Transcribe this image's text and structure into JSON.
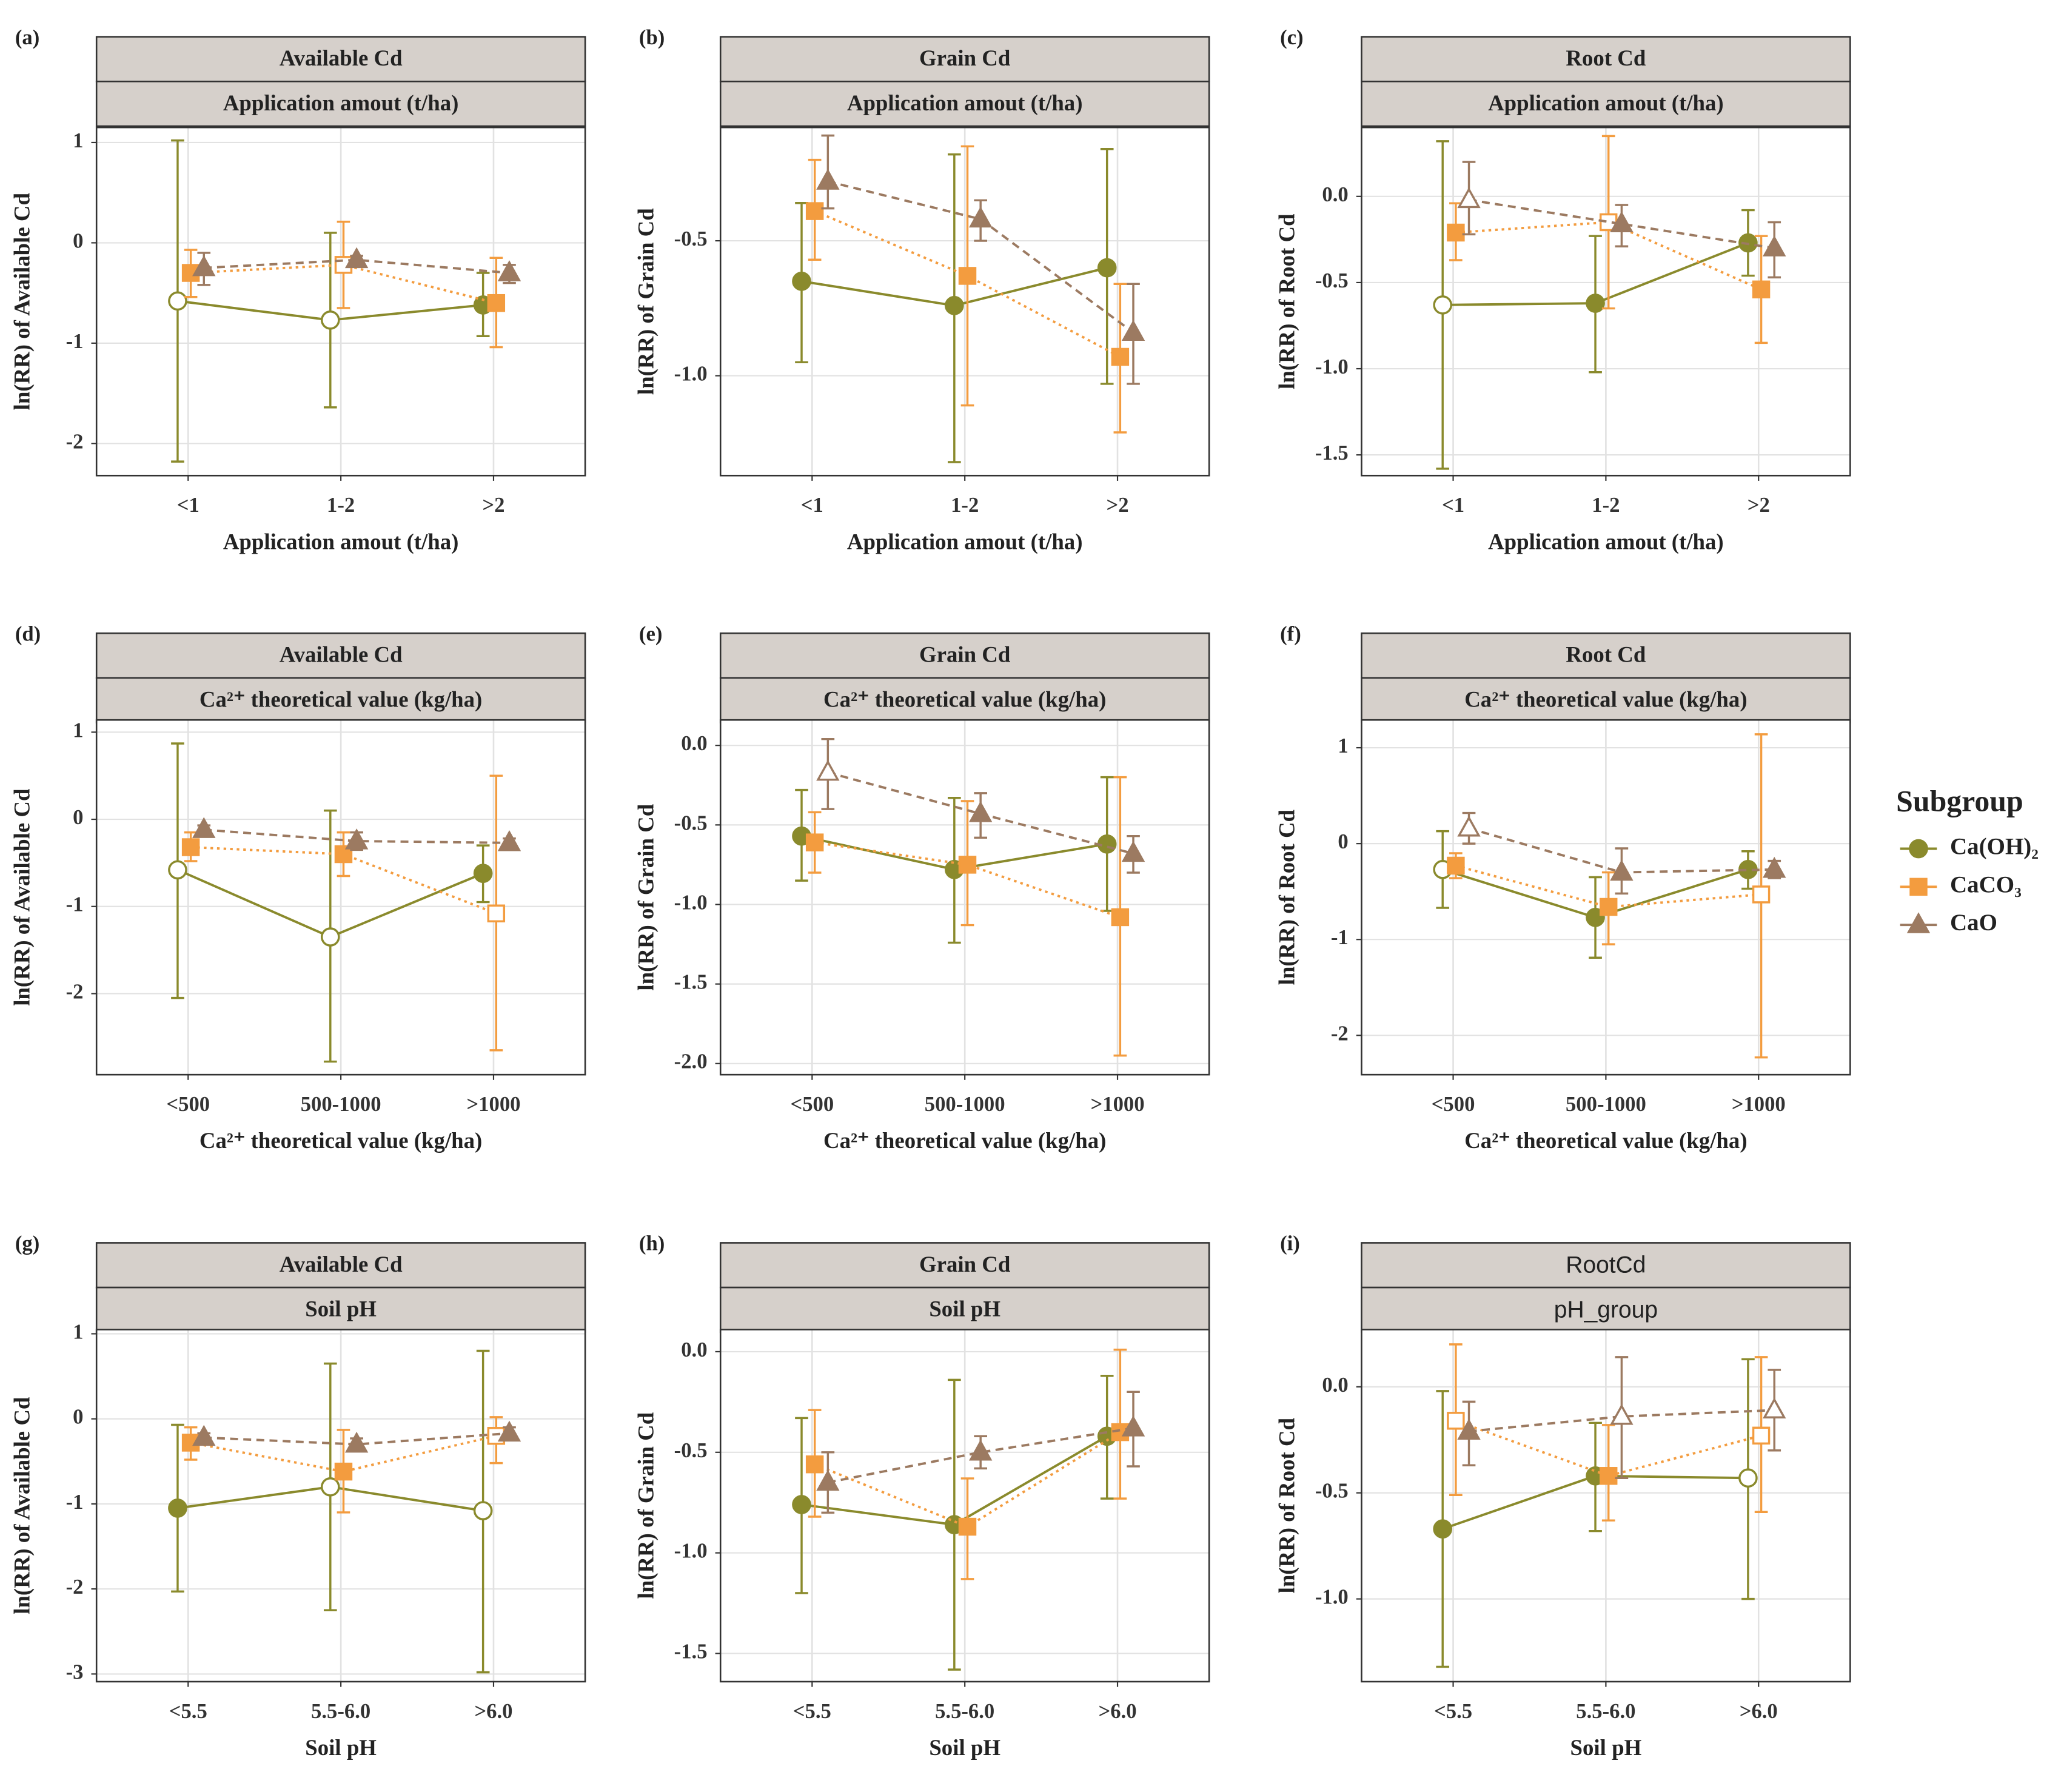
{
  "legend": {
    "title": "Subgroup"
  },
  "chart_data": [
    {
      "type": "line",
      "panel_label": "(a)",
      "strips": [
        "Available Cd",
        "Application amout (t/ha)"
      ],
      "x_label": "Application amout (t/ha)",
      "y_label": "ln(RR) of Available Cd",
      "categories": [
        "<1",
        "1-2",
        ">2"
      ],
      "ylim": [
        -2.32,
        1.15
      ],
      "yticks": [
        -2,
        -1,
        0,
        1
      ],
      "grid": true,
      "series": [
        {
          "name": "Ca(OH)₂",
          "color": "#8a8a2c",
          "marker": "circle",
          "dash": "solid",
          "values": [
            -0.58,
            -0.77,
            -0.62
          ],
          "ci_low": [
            -2.18,
            -1.64,
            -0.93
          ],
          "ci_high": [
            1.02,
            0.1,
            -0.3
          ],
          "filled": [
            false,
            false,
            true
          ]
        },
        {
          "name": "CaCO₃",
          "color": "#f39c3f",
          "marker": "square",
          "dash": "dotted",
          "values": [
            -0.3,
            -0.22,
            -0.6
          ],
          "ci_low": [
            -0.54,
            -0.65,
            -1.04
          ],
          "ci_high": [
            -0.07,
            0.21,
            -0.15
          ],
          "filled": [
            true,
            false,
            true
          ]
        },
        {
          "name": "CaO",
          "color": "#9c7a61",
          "marker": "triangle",
          "dash": "dashed",
          "values": [
            -0.25,
            -0.17,
            -0.3
          ],
          "ci_low": [
            -0.42,
            -0.22,
            -0.4
          ],
          "ci_high": [
            -0.1,
            -0.13,
            -0.22
          ],
          "filled": [
            true,
            true,
            true
          ]
        }
      ]
    },
    {
      "type": "line",
      "panel_label": "(b)",
      "strips": [
        "Grain Cd",
        "Application amout (t/ha)"
      ],
      "x_label": "Application amout (t/ha)",
      "y_label": "ln(RR) of Grain Cd",
      "categories": [
        "<1",
        "1-2",
        ">2"
      ],
      "ylim": [
        -1.37,
        -0.08
      ],
      "yticks": [
        {
          "value": -1,
          "label": "-1.0"
        },
        -0.5
      ],
      "grid": true,
      "series": [
        {
          "name": "Ca(OH)₂",
          "color": "#8a8a2c",
          "marker": "circle",
          "dash": "solid",
          "values": [
            -0.65,
            -0.74,
            -0.6
          ],
          "ci_low": [
            -0.95,
            -1.32,
            -1.03
          ],
          "ci_high": [
            -0.36,
            -0.18,
            -0.16
          ],
          "filled": [
            true,
            true,
            true
          ]
        },
        {
          "name": "CaCO₃",
          "color": "#f39c3f",
          "marker": "square",
          "dash": "dotted",
          "values": [
            -0.39,
            -0.63,
            -0.93
          ],
          "ci_low": [
            -0.57,
            -1.11,
            -1.21
          ],
          "ci_high": [
            -0.2,
            -0.15,
            -0.66
          ],
          "filled": [
            true,
            true,
            true
          ]
        },
        {
          "name": "CaO",
          "color": "#9c7a61",
          "marker": "triangle",
          "dash": "dashed",
          "values": [
            -0.28,
            -0.42,
            -0.84
          ],
          "ci_low": [
            -0.38,
            -0.5,
            -1.03
          ],
          "ci_high": [
            -0.11,
            -0.35,
            -0.66
          ],
          "filled": [
            true,
            true,
            true
          ]
        }
      ]
    },
    {
      "type": "line",
      "panel_label": "(c)",
      "strips": [
        "Root Cd",
        "Application amout (t/ha)"
      ],
      "x_label": "Application amout (t/ha)",
      "y_label": "ln(RR) of Root Cd",
      "categories": [
        "<1",
        "1-2",
        ">2"
      ],
      "ylim": [
        -1.62,
        0.4
      ],
      "yticks": [
        -1.5,
        {
          "value": -1,
          "label": "-1.0"
        },
        -0.5,
        {
          "value": 0,
          "label": "0.0"
        }
      ],
      "grid": true,
      "series": [
        {
          "name": "Ca(OH)₂",
          "color": "#8a8a2c",
          "marker": "circle",
          "dash": "solid",
          "values": [
            -0.63,
            -0.62,
            -0.27
          ],
          "ci_low": [
            -1.58,
            -1.02,
            -0.46
          ],
          "ci_high": [
            0.32,
            -0.23,
            -0.08
          ],
          "filled": [
            false,
            true,
            true
          ]
        },
        {
          "name": "CaCO₃",
          "color": "#f39c3f",
          "marker": "square",
          "dash": "dotted",
          "values": [
            -0.21,
            -0.15,
            -0.54
          ],
          "ci_low": [
            -0.37,
            -0.65,
            -0.85
          ],
          "ci_high": [
            -0.04,
            0.35,
            -0.23
          ],
          "filled": [
            true,
            false,
            true
          ]
        },
        {
          "name": "CaO",
          "color": "#9c7a61",
          "marker": "triangle",
          "dash": "dashed",
          "values": [
            -0.02,
            -0.16,
            -0.3
          ],
          "ci_low": [
            -0.22,
            -0.29,
            -0.47
          ],
          "ci_high": [
            0.2,
            -0.05,
            -0.15
          ],
          "filled": [
            false,
            true,
            true
          ]
        }
      ]
    },
    {
      "type": "line",
      "panel_label": "(d)",
      "strips": [
        "Available Cd",
        "Ca²⁺ theoretical value (kg/ha)"
      ],
      "x_label": "Ca²⁺ theoretical value (kg/ha)",
      "y_label": "ln(RR) of Available Cd",
      "categories": [
        "<500",
        "500-1000",
        ">1000"
      ],
      "ylim": [
        -2.93,
        1.14
      ],
      "yticks": [
        -2,
        -1,
        0,
        1
      ],
      "grid": true,
      "series": [
        {
          "name": "Ca(OH)₂",
          "color": "#8a8a2c",
          "marker": "circle",
          "dash": "solid",
          "values": [
            -0.58,
            -1.35,
            -0.62
          ],
          "ci_low": [
            -2.05,
            -2.78,
            -0.95
          ],
          "ci_high": [
            0.87,
            0.1,
            -0.3
          ],
          "filled": [
            false,
            false,
            true
          ]
        },
        {
          "name": "CaCO₃",
          "color": "#f39c3f",
          "marker": "square",
          "dash": "dotted",
          "values": [
            -0.32,
            -0.4,
            -1.08
          ],
          "ci_low": [
            -0.48,
            -0.65,
            -2.65
          ],
          "ci_high": [
            -0.15,
            -0.15,
            0.5
          ],
          "filled": [
            true,
            true,
            false
          ]
        },
        {
          "name": "CaO",
          "color": "#9c7a61",
          "marker": "triangle",
          "dash": "dashed",
          "values": [
            -0.12,
            -0.25,
            -0.27
          ],
          "ci_low": [
            -0.18,
            -0.35,
            -0.32
          ],
          "ci_high": [
            -0.07,
            -0.15,
            -0.22
          ],
          "filled": [
            true,
            true,
            true
          ]
        }
      ]
    },
    {
      "type": "line",
      "panel_label": "(e)",
      "strips": [
        "Grain Cd",
        "Ca²⁺ theoretical value (kg/ha)"
      ],
      "x_label": "Ca²⁺ theoretical value (kg/ha)",
      "y_label": "ln(RR) of Grain Cd",
      "categories": [
        "<500",
        "500-1000",
        ">1000"
      ],
      "ylim": [
        -2.07,
        0.16
      ],
      "yticks": [
        {
          "value": -2,
          "label": "-2.0"
        },
        -1.5,
        {
          "value": -1,
          "label": "-1.0"
        },
        -0.5,
        {
          "value": 0,
          "label": "0.0"
        }
      ],
      "grid": true,
      "series": [
        {
          "name": "Ca(OH)₂",
          "color": "#8a8a2c",
          "marker": "circle",
          "dash": "solid",
          "values": [
            -0.57,
            -0.78,
            -0.62
          ],
          "ci_low": [
            -0.85,
            -1.24,
            -1.04
          ],
          "ci_high": [
            -0.28,
            -0.33,
            -0.2
          ],
          "filled": [
            true,
            true,
            true
          ]
        },
        {
          "name": "CaCO₃",
          "color": "#f39c3f",
          "marker": "square",
          "dash": "dotted",
          "values": [
            -0.61,
            -0.75,
            -1.08
          ],
          "ci_low": [
            -0.8,
            -1.13,
            -1.95
          ],
          "ci_high": [
            -0.42,
            -0.35,
            -0.2
          ],
          "filled": [
            true,
            true,
            true
          ]
        },
        {
          "name": "CaO",
          "color": "#9c7a61",
          "marker": "triangle",
          "dash": "dashed",
          "values": [
            -0.17,
            -0.43,
            -0.68
          ],
          "ci_low": [
            -0.4,
            -0.58,
            -0.8
          ],
          "ci_high": [
            0.04,
            -0.3,
            -0.57
          ],
          "filled": [
            false,
            true,
            true
          ]
        }
      ]
    },
    {
      "type": "line",
      "panel_label": "(f)",
      "strips": [
        "Root Cd",
        "Ca²⁺ theoretical value (kg/ha)"
      ],
      "x_label": "Ca²⁺ theoretical value (kg/ha)",
      "y_label": "ln(RR) of Root Cd",
      "categories": [
        "<500",
        "500-1000",
        ">1000"
      ],
      "ylim": [
        -2.41,
        1.29
      ],
      "yticks": [
        -2,
        -1,
        0,
        1
      ],
      "grid": true,
      "series": [
        {
          "name": "Ca(OH)₂",
          "color": "#8a8a2c",
          "marker": "circle",
          "dash": "solid",
          "values": [
            -0.27,
            -0.77,
            -0.27
          ],
          "ci_low": [
            -0.67,
            -1.19,
            -0.47
          ],
          "ci_high": [
            0.13,
            -0.35,
            -0.08
          ],
          "filled": [
            false,
            true,
            true
          ]
        },
        {
          "name": "CaCO₃",
          "color": "#f39c3f",
          "marker": "square",
          "dash": "dotted",
          "values": [
            -0.23,
            -0.66,
            -0.53
          ],
          "ci_low": [
            -0.36,
            -1.05,
            -2.23
          ],
          "ci_high": [
            -0.1,
            -0.3,
            1.14
          ],
          "filled": [
            true,
            true,
            false
          ]
        },
        {
          "name": "CaO",
          "color": "#9c7a61",
          "marker": "triangle",
          "dash": "dashed",
          "values": [
            0.16,
            -0.3,
            -0.27
          ],
          "ci_low": [
            0,
            -0.52,
            -0.36
          ],
          "ci_high": [
            0.32,
            -0.05,
            -0.18
          ],
          "filled": [
            false,
            true,
            true
          ]
        }
      ]
    },
    {
      "type": "line",
      "panel_label": "(g)",
      "strips": [
        "Available Cd",
        "Soil pH"
      ],
      "x_label": "Soil pH",
      "y_label": "ln(RR) of Available Cd",
      "categories": [
        "<5.5",
        "5.5-6.0",
        ">6.0"
      ],
      "ylim": [
        -3.09,
        1.05
      ],
      "yticks": [
        -3,
        -2,
        -1,
        0,
        1
      ],
      "grid": true,
      "series": [
        {
          "name": "Ca(OH)₂",
          "color": "#8a8a2c",
          "marker": "circle",
          "dash": "solid",
          "values": [
            -1.05,
            -0.8,
            -1.08
          ],
          "ci_low": [
            -2.03,
            -2.25,
            -2.98
          ],
          "ci_high": [
            -0.07,
            0.65,
            0.8
          ],
          "filled": [
            true,
            false,
            false
          ]
        },
        {
          "name": "CaCO₃",
          "color": "#f39c3f",
          "marker": "square",
          "dash": "dotted",
          "values": [
            -0.28,
            -0.62,
            -0.2
          ],
          "ci_low": [
            -0.48,
            -1.1,
            -0.52
          ],
          "ci_high": [
            -0.1,
            -0.13,
            0.02
          ],
          "filled": [
            true,
            true,
            false
          ]
        },
        {
          "name": "CaO",
          "color": "#9c7a61",
          "marker": "triangle",
          "dash": "dashed",
          "values": [
            -0.22,
            -0.3,
            -0.17
          ],
          "ci_low": [
            -0.27,
            -0.37,
            -0.23
          ],
          "ci_high": [
            -0.17,
            -0.23,
            -0.1
          ],
          "filled": [
            true,
            true,
            true
          ]
        }
      ]
    },
    {
      "type": "line",
      "panel_label": "(h)",
      "strips": [
        "Grain Cd",
        "Soil pH"
      ],
      "x_label": "Soil pH",
      "y_label": "ln(RR) of Grain Cd",
      "categories": [
        "<5.5",
        "5.5-6.0",
        ">6.0"
      ],
      "ylim": [
        -1.64,
        0.11
      ],
      "yticks": [
        -1.5,
        {
          "value": -1,
          "label": "-1.0"
        },
        -0.5,
        {
          "value": 0,
          "label": "0.0"
        }
      ],
      "grid": true,
      "series": [
        {
          "name": "Ca(OH)₂",
          "color": "#8a8a2c",
          "marker": "circle",
          "dash": "solid",
          "values": [
            -0.76,
            -0.86,
            -0.42
          ],
          "ci_low": [
            -1.2,
            -1.58,
            -0.73
          ],
          "ci_high": [
            -0.33,
            -0.14,
            -0.12
          ],
          "filled": [
            true,
            true,
            true
          ]
        },
        {
          "name": "CaCO₃",
          "color": "#f39c3f",
          "marker": "square",
          "dash": "dotted",
          "values": [
            -0.56,
            -0.87,
            -0.4
          ],
          "ci_low": [
            -0.82,
            -1.13,
            -0.73
          ],
          "ci_high": [
            -0.29,
            -0.63,
            0.01
          ],
          "filled": [
            true,
            true,
            true
          ]
        },
        {
          "name": "CaO",
          "color": "#9c7a61",
          "marker": "triangle",
          "dash": "dashed",
          "values": [
            -0.65,
            -0.5,
            -0.38
          ],
          "ci_low": [
            -0.8,
            -0.58,
            -0.57
          ],
          "ci_high": [
            -0.5,
            -0.42,
            -0.2
          ],
          "filled": [
            true,
            true,
            true
          ]
        }
      ]
    },
    {
      "type": "line",
      "panel_label": "(i)",
      "strips": [
        "RootCd",
        "pH_group"
      ],
      "strip_font": "sans-serif",
      "x_label": "Soil pH",
      "y_label": "ln(RR) of Root Cd",
      "categories": [
        "<5.5",
        "5.5-6.0",
        ">6.0"
      ],
      "ylim": [
        -1.39,
        0.27
      ],
      "yticks": [
        {
          "value": -1,
          "label": "-1.0"
        },
        -0.5,
        {
          "value": 0,
          "label": "0.0"
        }
      ],
      "grid": true,
      "series": [
        {
          "name": "Ca(OH)₂",
          "color": "#8a8a2c",
          "marker": "circle",
          "dash": "solid",
          "values": [
            -0.67,
            -0.42,
            -0.43
          ],
          "ci_low": [
            -1.32,
            -0.68,
            -1
          ],
          "ci_high": [
            -0.02,
            -0.17,
            0.13
          ],
          "filled": [
            true,
            true,
            false
          ]
        },
        {
          "name": "CaCO₃",
          "color": "#f39c3f",
          "marker": "square",
          "dash": "dotted",
          "values": [
            -0.16,
            -0.42,
            -0.23
          ],
          "ci_low": [
            -0.51,
            -0.63,
            -0.59
          ],
          "ci_high": [
            0.2,
            -0.18,
            0.14
          ],
          "filled": [
            false,
            true,
            false
          ]
        },
        {
          "name": "CaO",
          "color": "#9c7a61",
          "marker": "triangle",
          "dash": "dashed",
          "values": [
            -0.21,
            -0.14,
            -0.11
          ],
          "ci_low": [
            -0.37,
            -0.43,
            -0.3
          ],
          "ci_high": [
            -0.07,
            0.14,
            0.08
          ],
          "filled": [
            true,
            false,
            false
          ]
        }
      ]
    }
  ]
}
